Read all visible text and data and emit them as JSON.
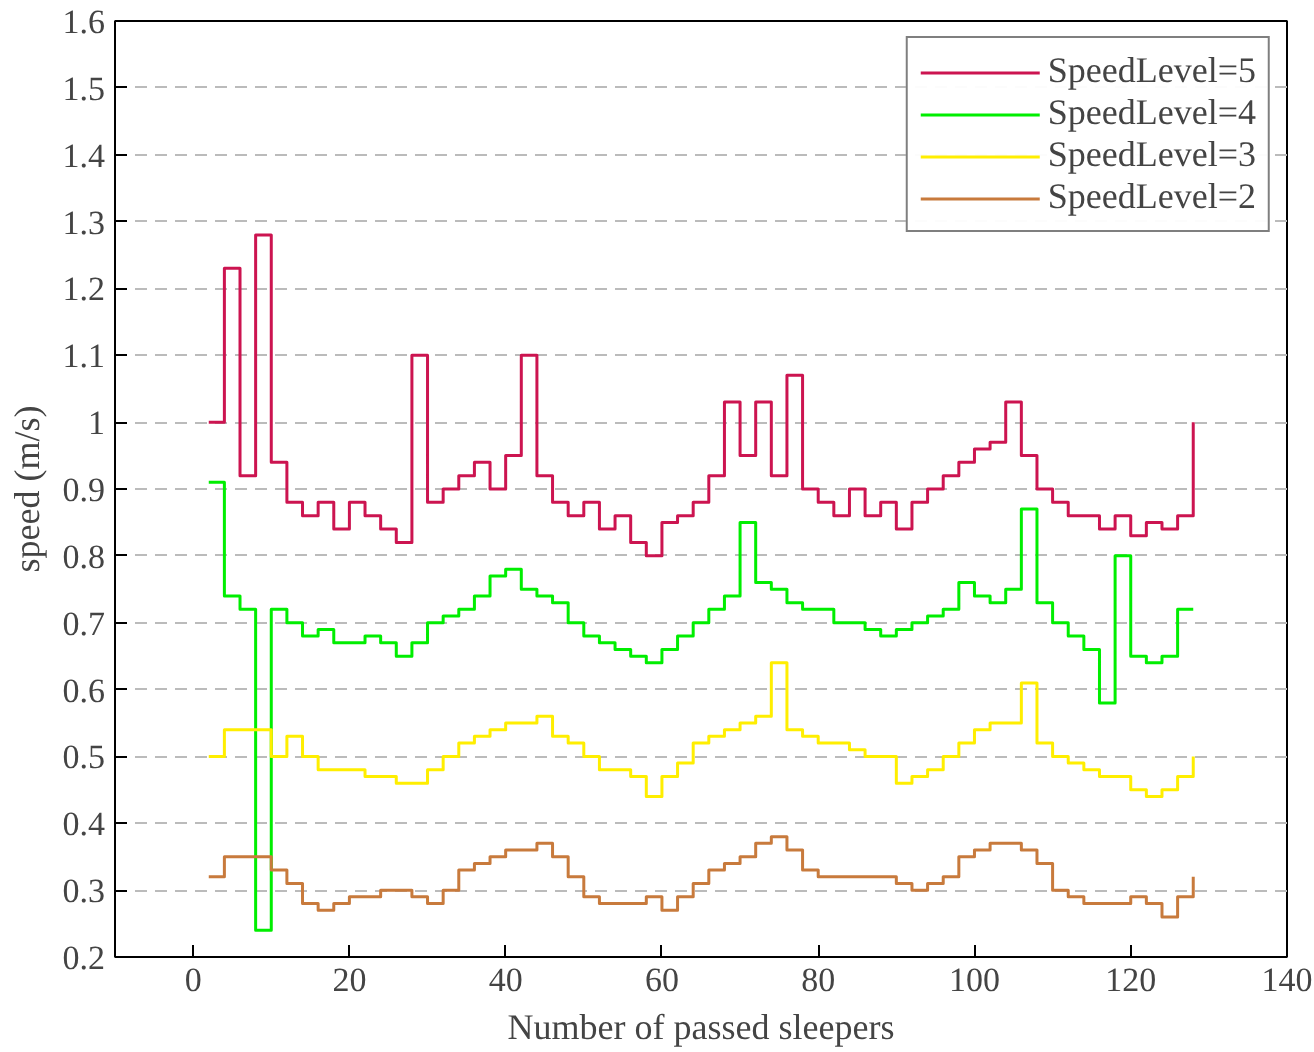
{
  "chart_data": {
    "type": "step",
    "xlabel": "Number of passed sleepers",
    "ylabel": "speed (m/s)",
    "x": [
      2,
      4,
      6,
      8,
      10,
      12,
      14,
      16,
      18,
      20,
      22,
      24,
      26,
      28,
      30,
      32,
      34,
      36,
      38,
      40,
      42,
      44,
      46,
      48,
      50,
      52,
      54,
      56,
      58,
      60,
      62,
      64,
      66,
      68,
      70,
      72,
      74,
      76,
      78,
      80,
      82,
      84,
      86,
      88,
      90,
      92,
      94,
      96,
      98,
      100,
      102,
      104,
      106,
      108,
      110,
      112,
      114,
      116,
      118,
      120,
      122,
      124,
      126,
      128
    ],
    "series": [
      {
        "name": "SpeedLevel=5",
        "color": "#cc1450",
        "values": [
          1.0,
          1.23,
          0.92,
          1.28,
          0.94,
          0.88,
          0.86,
          0.88,
          0.84,
          0.88,
          0.86,
          0.84,
          0.82,
          1.1,
          0.88,
          0.9,
          0.92,
          0.94,
          0.9,
          0.95,
          1.1,
          0.92,
          0.88,
          0.86,
          0.88,
          0.84,
          0.86,
          0.82,
          0.8,
          0.85,
          0.86,
          0.88,
          0.92,
          1.03,
          0.95,
          1.03,
          0.92,
          1.07,
          0.9,
          0.88,
          0.86,
          0.9,
          0.86,
          0.88,
          0.84,
          0.88,
          0.9,
          0.92,
          0.94,
          0.96,
          0.97,
          1.03,
          0.95,
          0.9,
          0.88,
          0.86,
          0.86,
          0.84,
          0.86,
          0.83,
          0.85,
          0.84,
          0.86,
          1.0
        ]
      },
      {
        "name": "SpeedLevel=4",
        "color": "#00ee00",
        "values": [
          0.91,
          0.74,
          0.72,
          0.24,
          0.72,
          0.7,
          0.68,
          0.69,
          0.67,
          0.67,
          0.68,
          0.67,
          0.65,
          0.67,
          0.7,
          0.71,
          0.72,
          0.74,
          0.77,
          0.78,
          0.75,
          0.74,
          0.73,
          0.7,
          0.68,
          0.67,
          0.66,
          0.65,
          0.64,
          0.66,
          0.68,
          0.7,
          0.72,
          0.74,
          0.85,
          0.76,
          0.75,
          0.73,
          0.72,
          0.72,
          0.7,
          0.7,
          0.69,
          0.68,
          0.69,
          0.7,
          0.71,
          0.72,
          0.76,
          0.74,
          0.73,
          0.75,
          0.87,
          0.73,
          0.7,
          0.68,
          0.66,
          0.58,
          0.8,
          0.65,
          0.64,
          0.65,
          0.72,
          0.72
        ]
      },
      {
        "name": "SpeedLevel=3",
        "color": "#ffee00",
        "values": [
          0.5,
          0.54,
          0.54,
          0.54,
          0.5,
          0.53,
          0.5,
          0.48,
          0.48,
          0.48,
          0.47,
          0.47,
          0.46,
          0.46,
          0.48,
          0.5,
          0.52,
          0.53,
          0.54,
          0.55,
          0.55,
          0.56,
          0.53,
          0.52,
          0.5,
          0.48,
          0.48,
          0.47,
          0.44,
          0.47,
          0.49,
          0.52,
          0.53,
          0.54,
          0.55,
          0.56,
          0.64,
          0.54,
          0.53,
          0.52,
          0.52,
          0.51,
          0.5,
          0.5,
          0.46,
          0.47,
          0.48,
          0.5,
          0.52,
          0.54,
          0.55,
          0.55,
          0.61,
          0.52,
          0.5,
          0.49,
          0.48,
          0.47,
          0.47,
          0.45,
          0.44,
          0.45,
          0.47,
          0.5
        ]
      },
      {
        "name": "SpeedLevel=2",
        "color": "#c87a3c",
        "values": [
          0.32,
          0.35,
          0.35,
          0.35,
          0.33,
          0.31,
          0.28,
          0.27,
          0.28,
          0.29,
          0.29,
          0.3,
          0.3,
          0.29,
          0.28,
          0.3,
          0.33,
          0.34,
          0.35,
          0.36,
          0.36,
          0.37,
          0.35,
          0.32,
          0.29,
          0.28,
          0.28,
          0.28,
          0.29,
          0.27,
          0.29,
          0.31,
          0.33,
          0.34,
          0.35,
          0.37,
          0.38,
          0.36,
          0.33,
          0.32,
          0.32,
          0.32,
          0.32,
          0.32,
          0.31,
          0.3,
          0.31,
          0.32,
          0.35,
          0.36,
          0.37,
          0.37,
          0.36,
          0.34,
          0.3,
          0.29,
          0.28,
          0.28,
          0.28,
          0.29,
          0.28,
          0.26,
          0.29,
          0.32
        ]
      }
    ],
    "xlim": [
      -10,
      140
    ],
    "ylim": [
      0.2,
      1.6
    ],
    "xticks": [
      0,
      20,
      40,
      60,
      80,
      100,
      120,
      140
    ],
    "yticks": [
      0.2,
      0.3,
      0.4,
      0.5,
      0.6,
      0.7,
      0.8,
      0.9,
      1,
      1.1,
      1.2,
      1.3,
      1.4,
      1.5,
      1.6
    ],
    "grid": "y",
    "legend": "top right",
    "line_style": "solid"
  }
}
